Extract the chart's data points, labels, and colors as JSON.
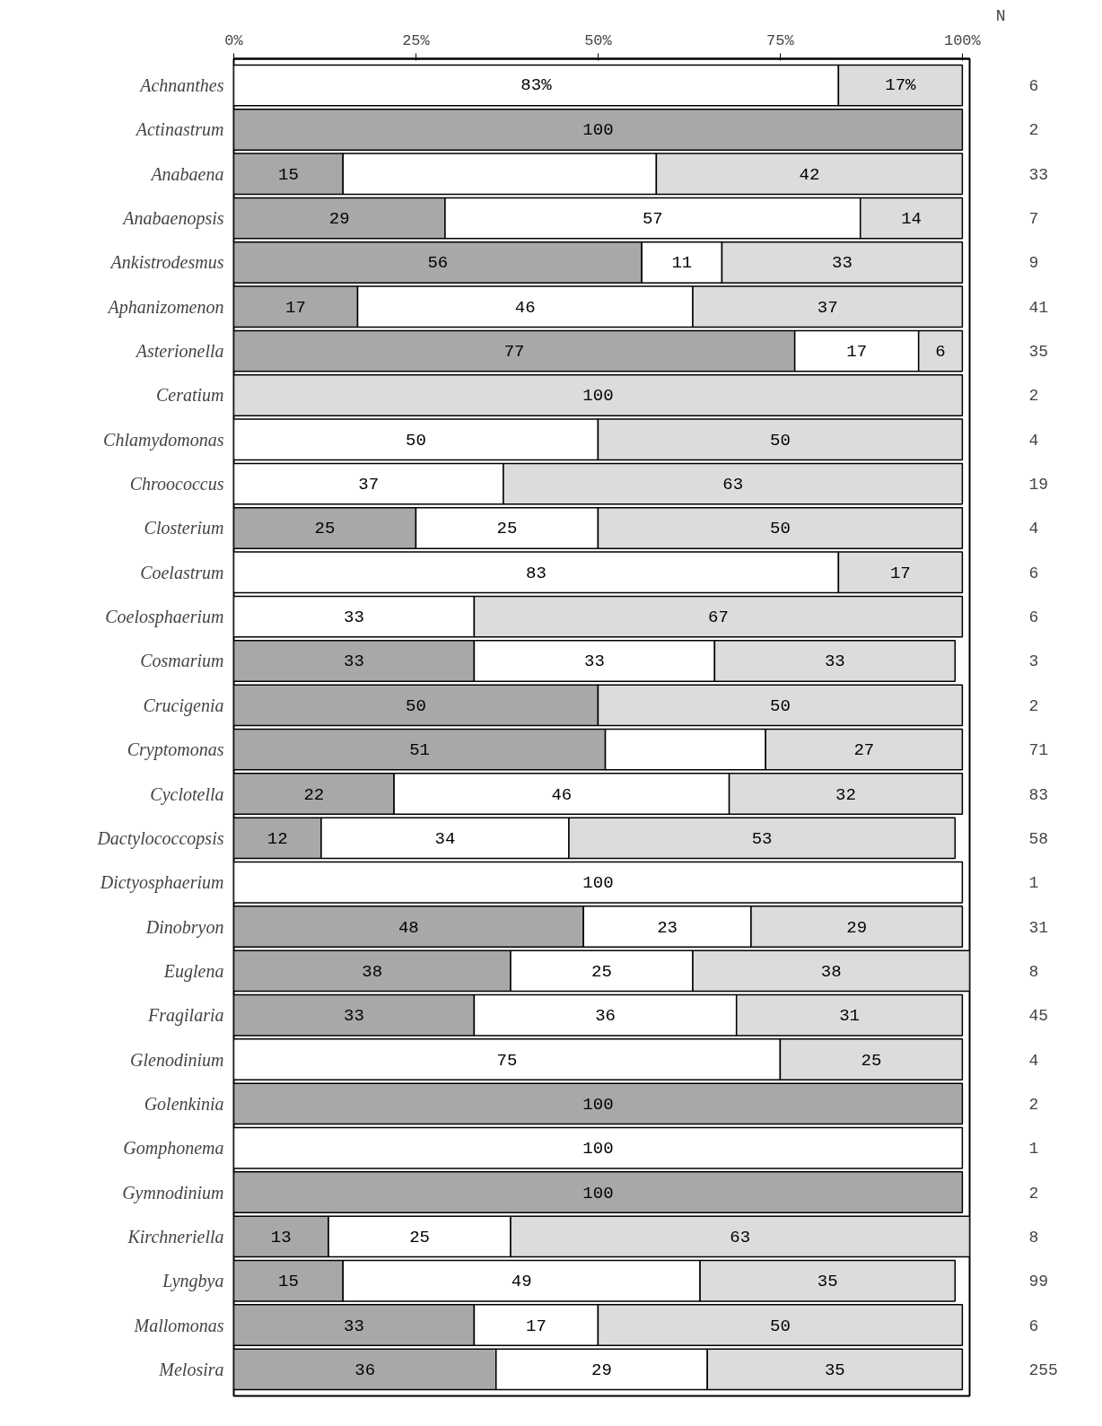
{
  "chart_data": {
    "type": "bar",
    "orientation": "horizontal",
    "stacked": true,
    "categories": [
      "Achnanthes",
      "Actinastrum",
      "Anabaena",
      "Anabaenopsis",
      "Ankistrodesmus",
      "Aphanizomenon",
      "Asterionella",
      "Ceratium",
      "Chlamydomonas",
      "Chroococcus",
      "Closterium",
      "Coelastrum",
      "Coelosphaerium",
      "Cosmarium",
      "Crucigenia",
      "Cryptomonas",
      "Cyclotella",
      "Dactylococcopsis",
      "Dictyosphaerium",
      "Dinobryon",
      "Euglena",
      "Fragilaria",
      "Glenodinium",
      "Golenkinia",
      "Gomphonema",
      "Gymnodinium",
      "Kirchneriella",
      "Lyngbya",
      "Mallomonas",
      "Melosira"
    ],
    "series": [
      {
        "color": "#a8a8a8",
        "values": [
          null,
          100,
          15,
          29,
          56,
          17,
          77,
          null,
          null,
          null,
          25,
          null,
          null,
          33,
          50,
          51,
          22,
          12,
          null,
          48,
          38,
          33,
          null,
          100,
          null,
          100,
          13,
          15,
          33,
          36
        ],
        "value_labels": [
          null,
          "100",
          "15",
          "29",
          "56",
          "17",
          "77",
          null,
          null,
          null,
          "25",
          null,
          null,
          "33",
          "50",
          "51",
          "22",
          "12",
          null,
          "48",
          "38",
          "33",
          null,
          "100",
          null,
          "100",
          "13",
          "15",
          "33",
          "36"
        ]
      },
      {
        "color": "#ffffff",
        "values": [
          83,
          null,
          43,
          57,
          11,
          46,
          17,
          null,
          50,
          37,
          25,
          83,
          33,
          33,
          null,
          22,
          46,
          34,
          100,
          23,
          25,
          36,
          75,
          null,
          100,
          null,
          25,
          49,
          17,
          29
        ],
        "value_labels": [
          "83%",
          null,
          null,
          "57",
          "11",
          "46",
          "17",
          null,
          "50",
          "37",
          "25",
          "83",
          "33",
          "33",
          null,
          null,
          "46",
          "34",
          "100",
          "23",
          "25",
          "36",
          "75",
          null,
          "100",
          null,
          "25",
          "49",
          "17",
          "29"
        ]
      },
      {
        "color": "#dcdcdc",
        "values": [
          17,
          null,
          42,
          14,
          33,
          37,
          6,
          100,
          50,
          63,
          50,
          17,
          67,
          33,
          50,
          27,
          32,
          53,
          null,
          29,
          38,
          31,
          25,
          null,
          null,
          null,
          63,
          35,
          50,
          35
        ],
        "value_labels": [
          "17%",
          null,
          "42",
          "14",
          "33",
          "37",
          "6",
          "100",
          "50",
          "63",
          "50",
          "17",
          "67",
          "33",
          "50",
          "27",
          "32",
          "53",
          null,
          "29",
          "38",
          "31",
          "25",
          null,
          null,
          null,
          "63",
          "35",
          "50",
          "35"
        ]
      }
    ],
    "xlim": [
      0,
      101
    ],
    "xticks": [
      {
        "value": 0,
        "label": "0%"
      },
      {
        "value": 25,
        "label": "25%"
      },
      {
        "value": 50,
        "label": "50%"
      },
      {
        "value": 75,
        "label": "75%"
      },
      {
        "value": 100,
        "label": "100%"
      }
    ],
    "annotations": [
      "N",
      "6",
      "2",
      "33",
      "7",
      "9",
      "41",
      "35",
      "2",
      "4",
      "19",
      "4",
      "6",
      "6",
      "3",
      "2",
      "71",
      "83",
      "58",
      "1",
      "31",
      "8",
      "45",
      "4",
      "2",
      "1",
      "2",
      "8",
      "99",
      "6",
      "255"
    ],
    "grid": false
  }
}
